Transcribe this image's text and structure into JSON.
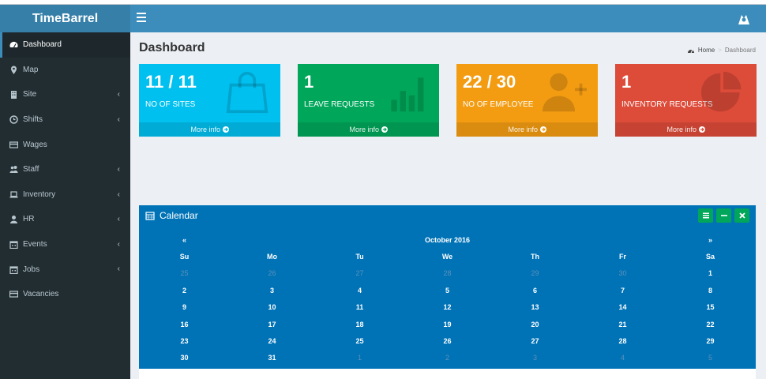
{
  "app": {
    "brand": "TimeBarrel"
  },
  "sidebar": {
    "items": [
      {
        "label": "Dashboard",
        "icon": "dashboard-icon",
        "chevron": false,
        "active": true
      },
      {
        "label": "Map",
        "icon": "map-marker-icon",
        "chevron": false
      },
      {
        "label": "Site",
        "icon": "building-icon",
        "chevron": true
      },
      {
        "label": "Shifts",
        "icon": "clock-icon",
        "chevron": true
      },
      {
        "label": "Wages",
        "icon": "credit-card-icon",
        "chevron": false
      },
      {
        "label": "Staff",
        "icon": "users-icon",
        "chevron": true
      },
      {
        "label": "Inventory",
        "icon": "laptop-icon",
        "chevron": true
      },
      {
        "label": "HR",
        "icon": "user-icon",
        "chevron": true
      },
      {
        "label": "Events",
        "icon": "calendar-icon",
        "chevron": true
      },
      {
        "label": "Jobs",
        "icon": "calendar-icon",
        "chevron": true
      },
      {
        "label": "Vacancies",
        "icon": "credit-card-icon",
        "chevron": false
      }
    ],
    "chevron_glyph": "‹"
  },
  "page": {
    "title": "Dashboard",
    "breadcrumb": {
      "home": "Home",
      "separator": ">",
      "current": "Dashboard"
    }
  },
  "stat_boxes": [
    {
      "value": "11 / 11",
      "label": "NO OF SITES",
      "more": "More info",
      "color": "#00c0ef",
      "icon": "shopping-bag-icon"
    },
    {
      "value": "1",
      "label": "LEAVE REQUESTS",
      "more": "More info",
      "color": "#00a65a",
      "icon": "bar-chart-icon"
    },
    {
      "value": "22 / 30",
      "label": "NO OF EMPLOYEE",
      "more": "More info",
      "color": "#f39c12",
      "icon": "user-plus-icon"
    },
    {
      "value": "1",
      "label": "INVENTORY REQUESTS",
      "more": "More info",
      "color": "#dd4b39",
      "icon": "pie-chart-icon"
    }
  ],
  "calendar": {
    "title": "Calendar",
    "month": "October 2016",
    "prev": "«",
    "next": "»",
    "weekdays": [
      "Su",
      "Mo",
      "Tu",
      "We",
      "Th",
      "Fr",
      "Sa"
    ],
    "weeks": [
      [
        {
          "d": "25",
          "m": true
        },
        {
          "d": "26",
          "m": true
        },
        {
          "d": "27",
          "m": true
        },
        {
          "d": "28",
          "m": true
        },
        {
          "d": "29",
          "m": true
        },
        {
          "d": "30",
          "m": true
        },
        {
          "d": "1"
        }
      ],
      [
        {
          "d": "2"
        },
        {
          "d": "3"
        },
        {
          "d": "4"
        },
        {
          "d": "5"
        },
        {
          "d": "6"
        },
        {
          "d": "7"
        },
        {
          "d": "8"
        }
      ],
      [
        {
          "d": "9"
        },
        {
          "d": "10"
        },
        {
          "d": "11"
        },
        {
          "d": "12"
        },
        {
          "d": "13"
        },
        {
          "d": "14"
        },
        {
          "d": "15"
        }
      ],
      [
        {
          "d": "16"
        },
        {
          "d": "17"
        },
        {
          "d": "18"
        },
        {
          "d": "19"
        },
        {
          "d": "20"
        },
        {
          "d": "21"
        },
        {
          "d": "22"
        }
      ],
      [
        {
          "d": "23"
        },
        {
          "d": "24"
        },
        {
          "d": "25"
        },
        {
          "d": "26"
        },
        {
          "d": "27"
        },
        {
          "d": "28"
        },
        {
          "d": "29"
        }
      ],
      [
        {
          "d": "30"
        },
        {
          "d": "31"
        },
        {
          "d": "1",
          "m": true
        },
        {
          "d": "2",
          "m": true
        },
        {
          "d": "3",
          "m": true
        },
        {
          "d": "4",
          "m": true
        },
        {
          "d": "5",
          "m": true
        }
      ]
    ]
  },
  "colors": {
    "navbar": "#3c8dbc",
    "sidebar": "#222d32",
    "calendar": "#0073b7",
    "tool": "#00a65a"
  }
}
